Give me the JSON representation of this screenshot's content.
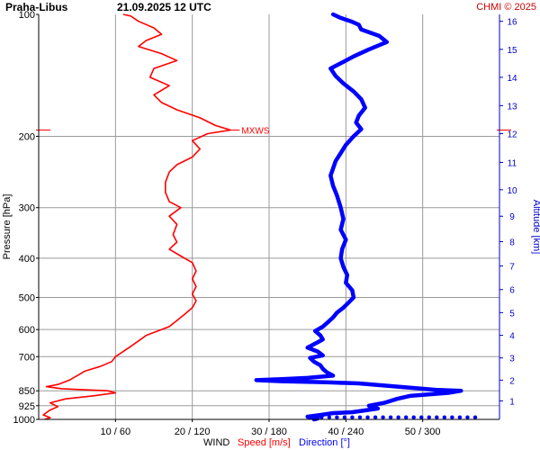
{
  "header": {
    "station": "Praha-Libus",
    "datetime": "21.09.2025 12 UTC",
    "credit": "CHMI © 2025"
  },
  "colors": {
    "speed": "#ff0000",
    "direction": "#0000ff",
    "grid": "#9a9a9a",
    "altitude_axis": "#0000cc"
  },
  "chart_data": {
    "type": "line",
    "title": "Praha-Libus   21.09.2025 12 UTC",
    "xlabel_parts": {
      "prefix": "WIND",
      "speed": "Speed [m/s]",
      "direction": "Direction [°]"
    },
    "ylabel_left": "Pressure [hPa]",
    "ylabel_right": "Altitude [km]",
    "y_scale": "log",
    "ylim_hpa": [
      1000,
      100
    ],
    "y_ticks": [
      100,
      200,
      300,
      400,
      500,
      600,
      700,
      850,
      925,
      1000
    ],
    "x_speed_range": [
      0,
      60
    ],
    "x_direction_range": [
      0,
      360
    ],
    "x_ticks": [
      {
        "speed": 10,
        "direction": 60,
        "label": "10 / 60"
      },
      {
        "speed": 20,
        "direction": 120,
        "label": "20 / 120"
      },
      {
        "speed": 30,
        "direction": 180,
        "label": "30 / 180"
      },
      {
        "speed": 40,
        "direction": 240,
        "label": "40 / 240"
      },
      {
        "speed": 50,
        "direction": 300,
        "label": "50 / 300"
      }
    ],
    "altitude_ticks_km": [
      {
        "km": 1,
        "hpa": 900
      },
      {
        "km": 2,
        "hpa": 800
      },
      {
        "km": 3,
        "hpa": 705
      },
      {
        "km": 4,
        "hpa": 620
      },
      {
        "km": 5,
        "hpa": 545
      },
      {
        "km": 6,
        "hpa": 478
      },
      {
        "km": 7,
        "hpa": 418
      },
      {
        "km": 8,
        "hpa": 364
      },
      {
        "km": 9,
        "hpa": 315
      },
      {
        "km": 10,
        "hpa": 271
      },
      {
        "km": 11,
        "hpa": 232
      },
      {
        "km": 12,
        "hpa": 197
      },
      {
        "km": 13,
        "hpa": 168
      },
      {
        "km": 14,
        "hpa": 143
      },
      {
        "km": 15,
        "hpa": 122
      },
      {
        "km": 16,
        "hpa": 104
      }
    ],
    "mxws": {
      "label": "MXWS",
      "hpa": 193,
      "speed": 25
    },
    "series": [
      {
        "name": "Speed [m/s]",
        "points": [
          [
            1000,
            0.8
          ],
          [
            990,
            1.5
          ],
          [
            975,
            0.6
          ],
          [
            950,
            1.4
          ],
          [
            930,
            2.5
          ],
          [
            910,
            1.5
          ],
          [
            890,
            3.5
          ],
          [
            875,
            7
          ],
          [
            860,
            10
          ],
          [
            850,
            9
          ],
          [
            840,
            3
          ],
          [
            830,
            1
          ],
          [
            820,
            2.5
          ],
          [
            800,
            4
          ],
          [
            780,
            5
          ],
          [
            760,
            6
          ],
          [
            740,
            8
          ],
          [
            720,
            9.5
          ],
          [
            700,
            10
          ],
          [
            680,
            11
          ],
          [
            660,
            12
          ],
          [
            640,
            13
          ],
          [
            620,
            14
          ],
          [
            605,
            15.5
          ],
          [
            590,
            17
          ],
          [
            570,
            18
          ],
          [
            550,
            19
          ],
          [
            530,
            20
          ],
          [
            510,
            20.5
          ],
          [
            490,
            20
          ],
          [
            470,
            20.5
          ],
          [
            450,
            20
          ],
          [
            430,
            20.5
          ],
          [
            410,
            20
          ],
          [
            395,
            18.5
          ],
          [
            380,
            17
          ],
          [
            365,
            18
          ],
          [
            350,
            17.5
          ],
          [
            330,
            18
          ],
          [
            315,
            17
          ],
          [
            300,
            18.5
          ],
          [
            290,
            17
          ],
          [
            275,
            16.5
          ],
          [
            260,
            16.5
          ],
          [
            245,
            17
          ],
          [
            235,
            18
          ],
          [
            225,
            20
          ],
          [
            215,
            21
          ],
          [
            205,
            20
          ],
          [
            197,
            22
          ],
          [
            193,
            25
          ],
          [
            188,
            23
          ],
          [
            180,
            21
          ],
          [
            172,
            18
          ],
          [
            165,
            16
          ],
          [
            158,
            15
          ],
          [
            150,
            17
          ],
          [
            143,
            14.5
          ],
          [
            136,
            15
          ],
          [
            130,
            18
          ],
          [
            125,
            16
          ],
          [
            120,
            13
          ],
          [
            116,
            14
          ],
          [
            112,
            16
          ],
          [
            108,
            15
          ],
          [
            104,
            13
          ],
          [
            101,
            12
          ],
          [
            100,
            11
          ]
        ]
      },
      {
        "name": "Direction [°]",
        "points": [
          [
            1000,
            215
          ],
          [
            995,
            218
          ],
          [
            985,
            210
          ],
          [
            975,
            220
          ],
          [
            965,
            230
          ],
          [
            960,
            245
          ],
          [
            950,
            255
          ],
          [
            940,
            265
          ],
          [
            925,
            258
          ],
          [
            910,
            270
          ],
          [
            890,
            280
          ],
          [
            875,
            290
          ],
          [
            860,
            320
          ],
          [
            850,
            330
          ],
          [
            845,
            310
          ],
          [
            835,
            290
          ],
          [
            825,
            270
          ],
          [
            815,
            250
          ],
          [
            810,
            225
          ],
          [
            805,
            190
          ],
          [
            800,
            170
          ],
          [
            795,
            190
          ],
          [
            790,
            210
          ],
          [
            780,
            230
          ],
          [
            765,
            225
          ],
          [
            750,
            222
          ],
          [
            735,
            220
          ],
          [
            720,
            215
          ],
          [
            705,
            212
          ],
          [
            695,
            222
          ],
          [
            680,
            218
          ],
          [
            665,
            210
          ],
          [
            650,
            216
          ],
          [
            635,
            222
          ],
          [
            620,
            220
          ],
          [
            605,
            216
          ],
          [
            590,
            222
          ],
          [
            575,
            226
          ],
          [
            560,
            230
          ],
          [
            545,
            233
          ],
          [
            530,
            238
          ],
          [
            515,
            242
          ],
          [
            500,
            246
          ],
          [
            480,
            245
          ],
          [
            460,
            240
          ],
          [
            440,
            241
          ],
          [
            420,
            238
          ],
          [
            400,
            236
          ],
          [
            380,
            237
          ],
          [
            360,
            240
          ],
          [
            340,
            236
          ],
          [
            320,
            238
          ],
          [
            300,
            236
          ],
          [
            280,
            233
          ],
          [
            265,
            230
          ],
          [
            250,
            228
          ],
          [
            240,
            230
          ],
          [
            230,
            232
          ],
          [
            220,
            236
          ],
          [
            210,
            240
          ],
          [
            200,
            246
          ],
          [
            192,
            252
          ],
          [
            185,
            248
          ],
          [
            178,
            250
          ],
          [
            170,
            255
          ],
          [
            162,
            252
          ],
          [
            155,
            246
          ],
          [
            148,
            238
          ],
          [
            142,
            232
          ],
          [
            136,
            228
          ],
          [
            132,
            236
          ],
          [
            127,
            246
          ],
          [
            122,
            258
          ],
          [
            117,
            272
          ],
          [
            113,
            266
          ],
          [
            109,
            252
          ],
          [
            106,
            250
          ],
          [
            104,
            244
          ],
          [
            102,
            236
          ],
          [
            100,
            230
          ]
        ]
      }
    ]
  }
}
